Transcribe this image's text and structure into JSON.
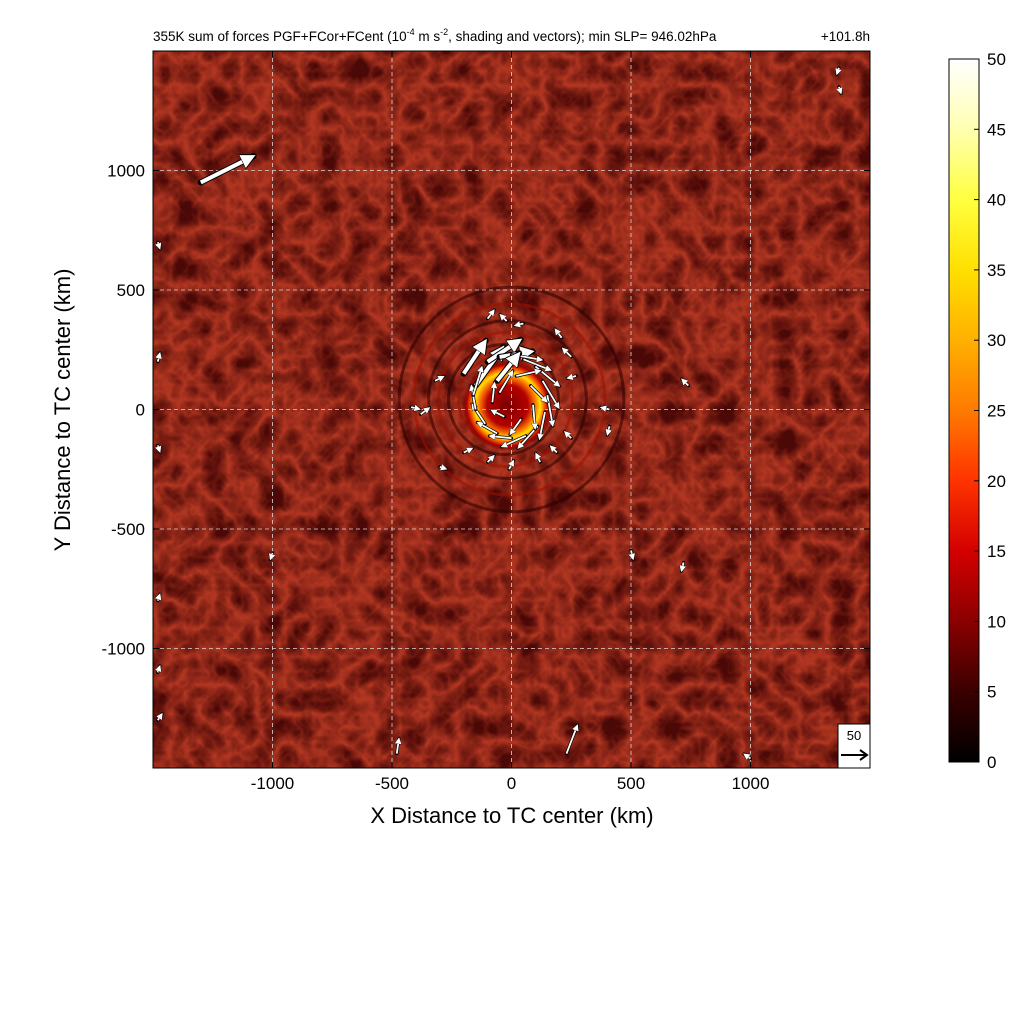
{
  "chart_data": {
    "type": "heatmap",
    "title": {
      "main": "355K sum of forces PGF+FCor+FCent (10",
      "exponent": "-4",
      "units_rest": " m s",
      "units_exponent": "-2",
      "tail": ", shading and vectors); min SLP= 946.02hPa",
      "time": "+101.8h"
    },
    "xlabel": "X Distance to TC center (km)",
    "ylabel": "Y Distance to TC center (km)",
    "xlim": [
      -1500,
      1500
    ],
    "ylim": [
      -1500,
      1500
    ],
    "x_ticks": [
      -1000,
      -500,
      0,
      500,
      1000
    ],
    "x_tick_labels": [
      "-1000",
      "-500",
      "0",
      "500",
      "1000"
    ],
    "y_ticks": [
      -1000,
      -500,
      0,
      500,
      1000
    ],
    "y_tick_labels": [
      "-1000",
      "-500",
      "0",
      "500",
      "1000"
    ],
    "grid": true,
    "colorbar": {
      "range": [
        0,
        50
      ],
      "ticks": [
        0,
        5,
        10,
        15,
        20,
        25,
        30,
        35,
        40,
        45,
        50
      ],
      "tick_labels": [
        "0",
        "5",
        "10",
        "15",
        "20",
        "25",
        "30",
        "35",
        "40",
        "45",
        "50"
      ],
      "colormap": "hot",
      "stops": [
        "#000000",
        "#3a0000",
        "#8a0000",
        "#d40000",
        "#ff3300",
        "#ff7a00",
        "#ffb000",
        "#ffe000",
        "#ffff40",
        "#ffffb0",
        "#ffffff"
      ]
    },
    "reference_vector": {
      "label": "50",
      "magnitude": 50
    },
    "field_description_values": {
      "background_level": 6,
      "eyewall_peak": 45,
      "eyewall_radius_km": 100
    },
    "vectors": [
      {
        "x": -1300,
        "y": 950,
        "u": 48,
        "v": 24
      },
      {
        "x": -200,
        "y": 150,
        "u": 20,
        "v": 30
      },
      {
        "x": -150,
        "y": 100,
        "u": 25,
        "v": 35
      },
      {
        "x": -100,
        "y": 200,
        "u": 30,
        "v": 20
      },
      {
        "x": -50,
        "y": 220,
        "u": 30,
        "v": 5
      },
      {
        "x": 0,
        "y": 230,
        "u": 28,
        "v": -5
      },
      {
        "x": 50,
        "y": 210,
        "u": 25,
        "v": -10
      },
      {
        "x": 100,
        "y": 180,
        "u": 22,
        "v": -18
      },
      {
        "x": 130,
        "y": 120,
        "u": 15,
        "v": -25
      },
      {
        "x": 150,
        "y": 60,
        "u": 5,
        "v": -28
      },
      {
        "x": 140,
        "y": -10,
        "u": -5,
        "v": -25
      },
      {
        "x": 110,
        "y": -70,
        "u": -18,
        "v": -20
      },
      {
        "x": 60,
        "y": -110,
        "u": -22,
        "v": -10
      },
      {
        "x": 0,
        "y": -120,
        "u": -20,
        "v": 2
      },
      {
        "x": -60,
        "y": -100,
        "u": -18,
        "v": 10
      },
      {
        "x": -110,
        "y": -60,
        "u": -12,
        "v": 18
      },
      {
        "x": -150,
        "y": 0,
        "u": -4,
        "v": 22
      },
      {
        "x": -160,
        "y": 60,
        "u": 8,
        "v": 26
      },
      {
        "x": -60,
        "y": 120,
        "u": 20,
        "v": 25
      },
      {
        "x": 20,
        "y": 140,
        "u": 22,
        "v": 5
      },
      {
        "x": 80,
        "y": 100,
        "u": 15,
        "v": -15
      },
      {
        "x": 90,
        "y": 20,
        "u": 2,
        "v": -22
      },
      {
        "x": 40,
        "y": -40,
        "u": -10,
        "v": -14
      },
      {
        "x": -30,
        "y": -30,
        "u": -12,
        "v": 6
      },
      {
        "x": -80,
        "y": 30,
        "u": 2,
        "v": 18
      },
      {
        "x": -50,
        "y": 70,
        "u": 12,
        "v": 20
      },
      {
        "x": -100,
        "y": 380,
        "u": 6,
        "v": 8
      },
      {
        "x": -20,
        "y": 370,
        "u": -6,
        "v": 6
      },
      {
        "x": 50,
        "y": 360,
        "u": -8,
        "v": -2
      },
      {
        "x": 210,
        "y": 300,
        "u": -6,
        "v": 8
      },
      {
        "x": 250,
        "y": 220,
        "u": -8,
        "v": 8
      },
      {
        "x": 270,
        "y": 140,
        "u": -8,
        "v": -2
      },
      {
        "x": -320,
        "y": 120,
        "u": 8,
        "v": 4
      },
      {
        "x": -420,
        "y": 10,
        "u": 8,
        "v": -2
      },
      {
        "x": -380,
        "y": -20,
        "u": 8,
        "v": 6
      },
      {
        "x": -300,
        "y": -240,
        "u": 6,
        "v": -2
      },
      {
        "x": -200,
        "y": -180,
        "u": 8,
        "v": 4
      },
      {
        "x": -100,
        "y": -220,
        "u": 6,
        "v": 6
      },
      {
        "x": -10,
        "y": -250,
        "u": 4,
        "v": 8
      },
      {
        "x": 120,
        "y": -220,
        "u": -4,
        "v": 8
      },
      {
        "x": 190,
        "y": -180,
        "u": -6,
        "v": 6
      },
      {
        "x": 250,
        "y": -120,
        "u": -6,
        "v": 6
      },
      {
        "x": 410,
        "y": 0,
        "u": -8,
        "v": 2
      },
      {
        "x": 410,
        "y": -70,
        "u": -2,
        "v": -8
      },
      {
        "x": 740,
        "y": 100,
        "u": -6,
        "v": 6
      },
      {
        "x": 500,
        "y": -590,
        "u": 2,
        "v": -8
      },
      {
        "x": 720,
        "y": -640,
        "u": -2,
        "v": -8
      },
      {
        "x": -1000,
        "y": -600,
        "u": -2,
        "v": -6
      },
      {
        "x": -480,
        "y": -1440,
        "u": 2,
        "v": 14
      },
      {
        "x": 230,
        "y": -1440,
        "u": 10,
        "v": 26
      },
      {
        "x": 1000,
        "y": -1460,
        "u": -6,
        "v": 4
      },
      {
        "x": 1370,
        "y": 1430,
        "u": -2,
        "v": -6
      },
      {
        "x": 1370,
        "y": 1350,
        "u": 2,
        "v": -6
      },
      {
        "x": -1480,
        "y": 700,
        "u": 2,
        "v": -6
      },
      {
        "x": -1480,
        "y": 200,
        "u": 2,
        "v": 8
      },
      {
        "x": -1480,
        "y": -150,
        "u": 2,
        "v": -6
      },
      {
        "x": -1480,
        "y": -800,
        "u": 2,
        "v": 6
      },
      {
        "x": -1480,
        "y": -1100,
        "u": 2,
        "v": 6
      },
      {
        "x": -1480,
        "y": -1300,
        "u": 4,
        "v": 6
      }
    ]
  }
}
